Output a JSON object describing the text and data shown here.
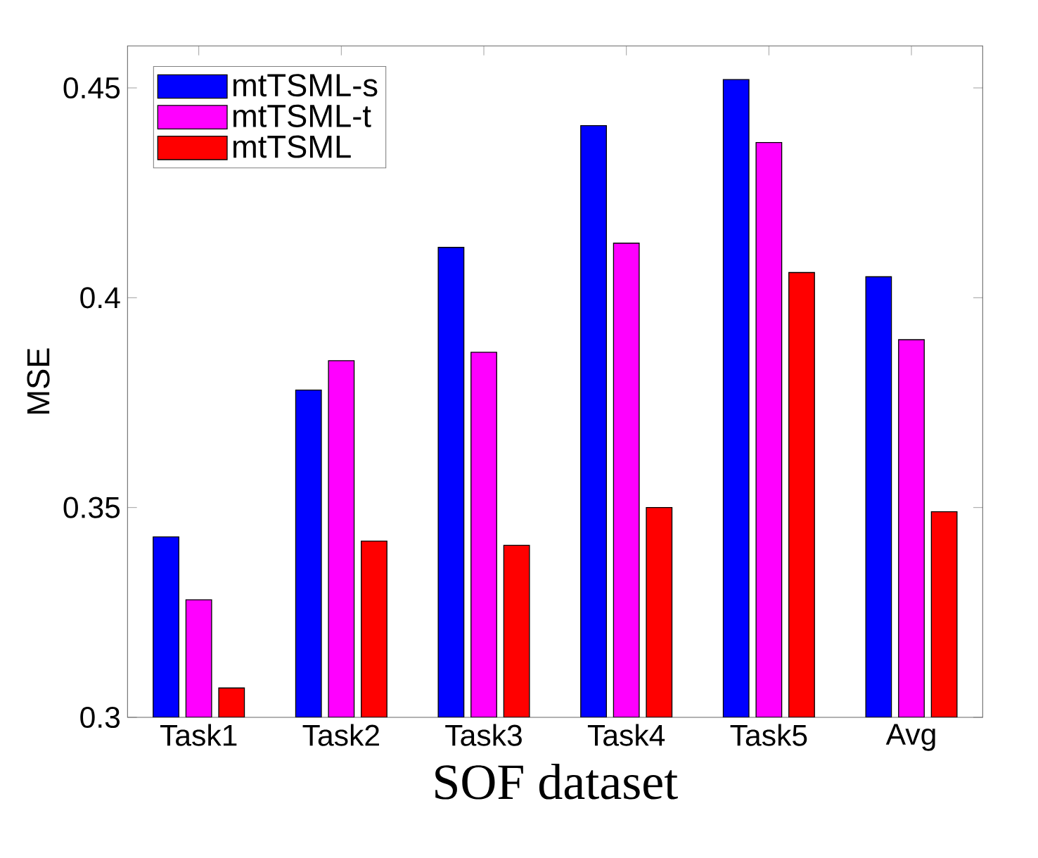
{
  "chart_data": {
    "type": "bar",
    "xlabel": "SOF dataset",
    "ylabel": "MSE",
    "categories": [
      "Task1",
      "Task2",
      "Task3",
      "Task4",
      "Task5",
      "Avg"
    ],
    "series": [
      {
        "name": "mtTSML-s",
        "color": "#0000ff",
        "values": [
          0.343,
          0.378,
          0.412,
          0.441,
          0.452,
          0.405
        ]
      },
      {
        "name": "mtTSML-t",
        "color": "#ff00ff",
        "values": [
          0.328,
          0.385,
          0.387,
          0.413,
          0.437,
          0.39
        ]
      },
      {
        "name": "mtTSML",
        "color": "#ff0000",
        "values": [
          0.307,
          0.342,
          0.341,
          0.35,
          0.406,
          0.349
        ]
      }
    ],
    "ylim": [
      0.3,
      0.46
    ],
    "yticks": [
      0.3,
      0.35,
      0.4,
      0.45
    ],
    "legend": "top left",
    "grid": false
  }
}
